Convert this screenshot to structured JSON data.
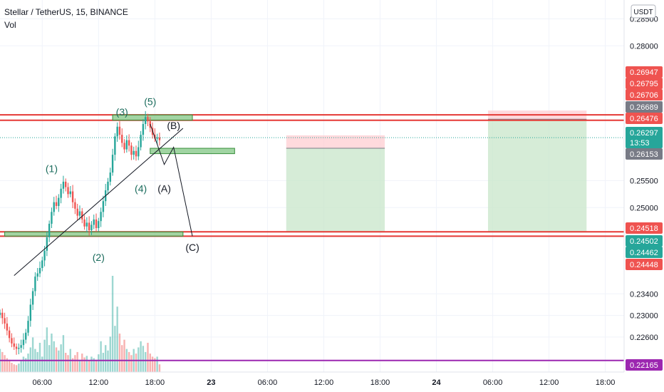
{
  "header": {
    "symbol_line": "Stellar / TetherUS, 15, BINANCE",
    "indicator": "Vol",
    "currency": "USDT"
  },
  "colors": {
    "up": "#26a69a",
    "down": "#ef5350",
    "resistance": "#e53935",
    "zone_fill": "#81c784",
    "zone_stroke": "#388e3c",
    "tp_fill": "#c8e6c9",
    "sl_fill": "#ffcdd2",
    "current": "#26a69a",
    "support_low": "#9c27b0"
  },
  "chart_data": {
    "type": "candlestick",
    "symbol": "Stellar / TetherUS",
    "interval": "15",
    "exchange": "BINANCE",
    "x_axis_labels": [
      "06:00",
      "12:00",
      "18:00",
      "23",
      "06:00",
      "12:00",
      "18:00",
      "24",
      "06:00",
      "12:00",
      "18:00"
    ],
    "y_axis_ticks": [
      "0.28500",
      "0.28000",
      "0.25500",
      "0.25000",
      "0.23400",
      "0.23000",
      "0.22600"
    ],
    "ylim": [
      0.2195,
      0.2885
    ],
    "x_start": "22 01:30",
    "x_end": "24 20:00",
    "current_price": "0.26297",
    "countdown": "13:53",
    "price_tags": [
      {
        "value": "0.26947",
        "color": "#ef5350"
      },
      {
        "value": "0.26795",
        "color": "#ef5350"
      },
      {
        "value": "0.26706",
        "color": "#ef5350"
      },
      {
        "value": "0.26689",
        "color": "#787b86"
      },
      {
        "value": "0.26476",
        "color": "#ef5350"
      },
      {
        "value": "0.26297",
        "color": "#26a69a"
      },
      {
        "value": "0.26153",
        "color": "#787b86"
      },
      {
        "value": "0.24518",
        "color": "#ef5350"
      },
      {
        "value": "0.24502",
        "color": "#26a69a"
      },
      {
        "value": "0.24462",
        "color": "#26a69a"
      },
      {
        "value": "0.24448",
        "color": "#ef5350"
      },
      {
        "value": "0.22165",
        "color": "#9c27b0"
      }
    ],
    "horizontal_levels": [
      {
        "price": 0.2672,
        "color": "#e53935"
      },
      {
        "price": 0.2662,
        "color": "#e53935"
      },
      {
        "price": 0.2455,
        "color": "#e53935"
      },
      {
        "price": 0.2447,
        "color": "#e53935"
      },
      {
        "price": 0.22165,
        "color": "#9c27b0"
      }
    ],
    "zones": [
      {
        "t0": "22 13:30",
        "t1": "22 22:00",
        "p0": 0.2662,
        "p1": 0.2672
      },
      {
        "t0": "22 17:30",
        "t1": "23 02:30",
        "p0": 0.26,
        "p1": 0.261
      },
      {
        "t0": "22 02:00",
        "t1": "22 21:00",
        "p0": 0.2447,
        "p1": 0.2455
      }
    ],
    "positions": [
      {
        "t0": "23 08:00",
        "t1": "23 18:30",
        "entry": 0.261,
        "stop": 0.2634,
        "target": 0.2455
      },
      {
        "t0": "24 05:30",
        "t1": "24 16:00",
        "entry": 0.2664,
        "stop": 0.268,
        "target": 0.2455
      }
    ],
    "wave_labels": [
      {
        "text": "(1)",
        "t": "22 07:00",
        "p": 0.2566
      },
      {
        "text": "(2)",
        "t": "22 12:00",
        "p": 0.2401
      },
      {
        "text": "(3)",
        "t": "22 14:30",
        "p": 0.2671
      },
      {
        "text": "(4)",
        "t": "22 16:30",
        "p": 0.2529
      },
      {
        "text": "(5)",
        "t": "22 17:30",
        "p": 0.269
      },
      {
        "text": "(A)",
        "t": "22 19:00",
        "p": 0.2529
      },
      {
        "text": "(B)",
        "t": "22 20:00",
        "p": 0.2646
      },
      {
        "text": "(C)",
        "t": "22 22:00",
        "p": 0.242
      }
    ],
    "trendline": [
      {
        "t": "22 03:00",
        "p": 0.2374
      },
      {
        "t": "22 21:00",
        "p": 0.2647
      }
    ],
    "abc_path": [
      {
        "t": "22 17:30",
        "p": 0.2655
      },
      {
        "t": "22 19:00",
        "p": 0.258
      },
      {
        "t": "22 20:00",
        "p": 0.2612
      },
      {
        "t": "22 22:00",
        "p": 0.2447
      }
    ],
    "closes": [
      0.2305,
      0.2295,
      0.2285,
      0.2272,
      0.2258,
      0.2248,
      0.2242,
      0.2238,
      0.224,
      0.2245,
      0.2255,
      0.2268,
      0.229,
      0.232,
      0.2345,
      0.2372,
      0.2378,
      0.2388,
      0.2402,
      0.242,
      0.2445,
      0.247,
      0.2492,
      0.251,
      0.2503,
      0.2518,
      0.2535,
      0.2548,
      0.2538,
      0.2525,
      0.253,
      0.251,
      0.2498,
      0.2485,
      0.2493,
      0.2478,
      0.2465,
      0.2472,
      0.2458,
      0.2468,
      0.2478,
      0.2462,
      0.2475,
      0.2492,
      0.2512,
      0.2532,
      0.2548,
      0.2565,
      0.2598,
      0.2632,
      0.265,
      0.2635,
      0.262,
      0.2608,
      0.2625,
      0.2615,
      0.2598,
      0.2605,
      0.2595,
      0.2612,
      0.2635,
      0.2655,
      0.2668,
      0.266,
      0.2648,
      0.2635,
      0.2628,
      0.263,
      0.2625
    ],
    "volumes": [
      3.0,
      2.6,
      2.2,
      1.8,
      1.6,
      1.2,
      1.0,
      0.9,
      1.1,
      1.5,
      2.0,
      1.8,
      2.4,
      3.2,
      4.5,
      3.0,
      2.6,
      3.8,
      2.0,
      4.2,
      5.8,
      3.5,
      5.0,
      4.0,
      3.2,
      2.8,
      3.6,
      4.8,
      2.5,
      2.2,
      3.0,
      1.8,
      2.2,
      2.6,
      1.6,
      2.4,
      1.9,
      2.1,
      1.5,
      2.0,
      1.8,
      1.6,
      2.3,
      4.0,
      2.5,
      3.5,
      2.8,
      4.6,
      12.5,
      6.0,
      8.5,
      5.0,
      3.5,
      4.2,
      3.0,
      2.6,
      2.2,
      3.0,
      2.4,
      3.2,
      4.0,
      3.4,
      2.6,
      3.8,
      2.4,
      2.0,
      1.8,
      2.0,
      1.0
    ]
  }
}
